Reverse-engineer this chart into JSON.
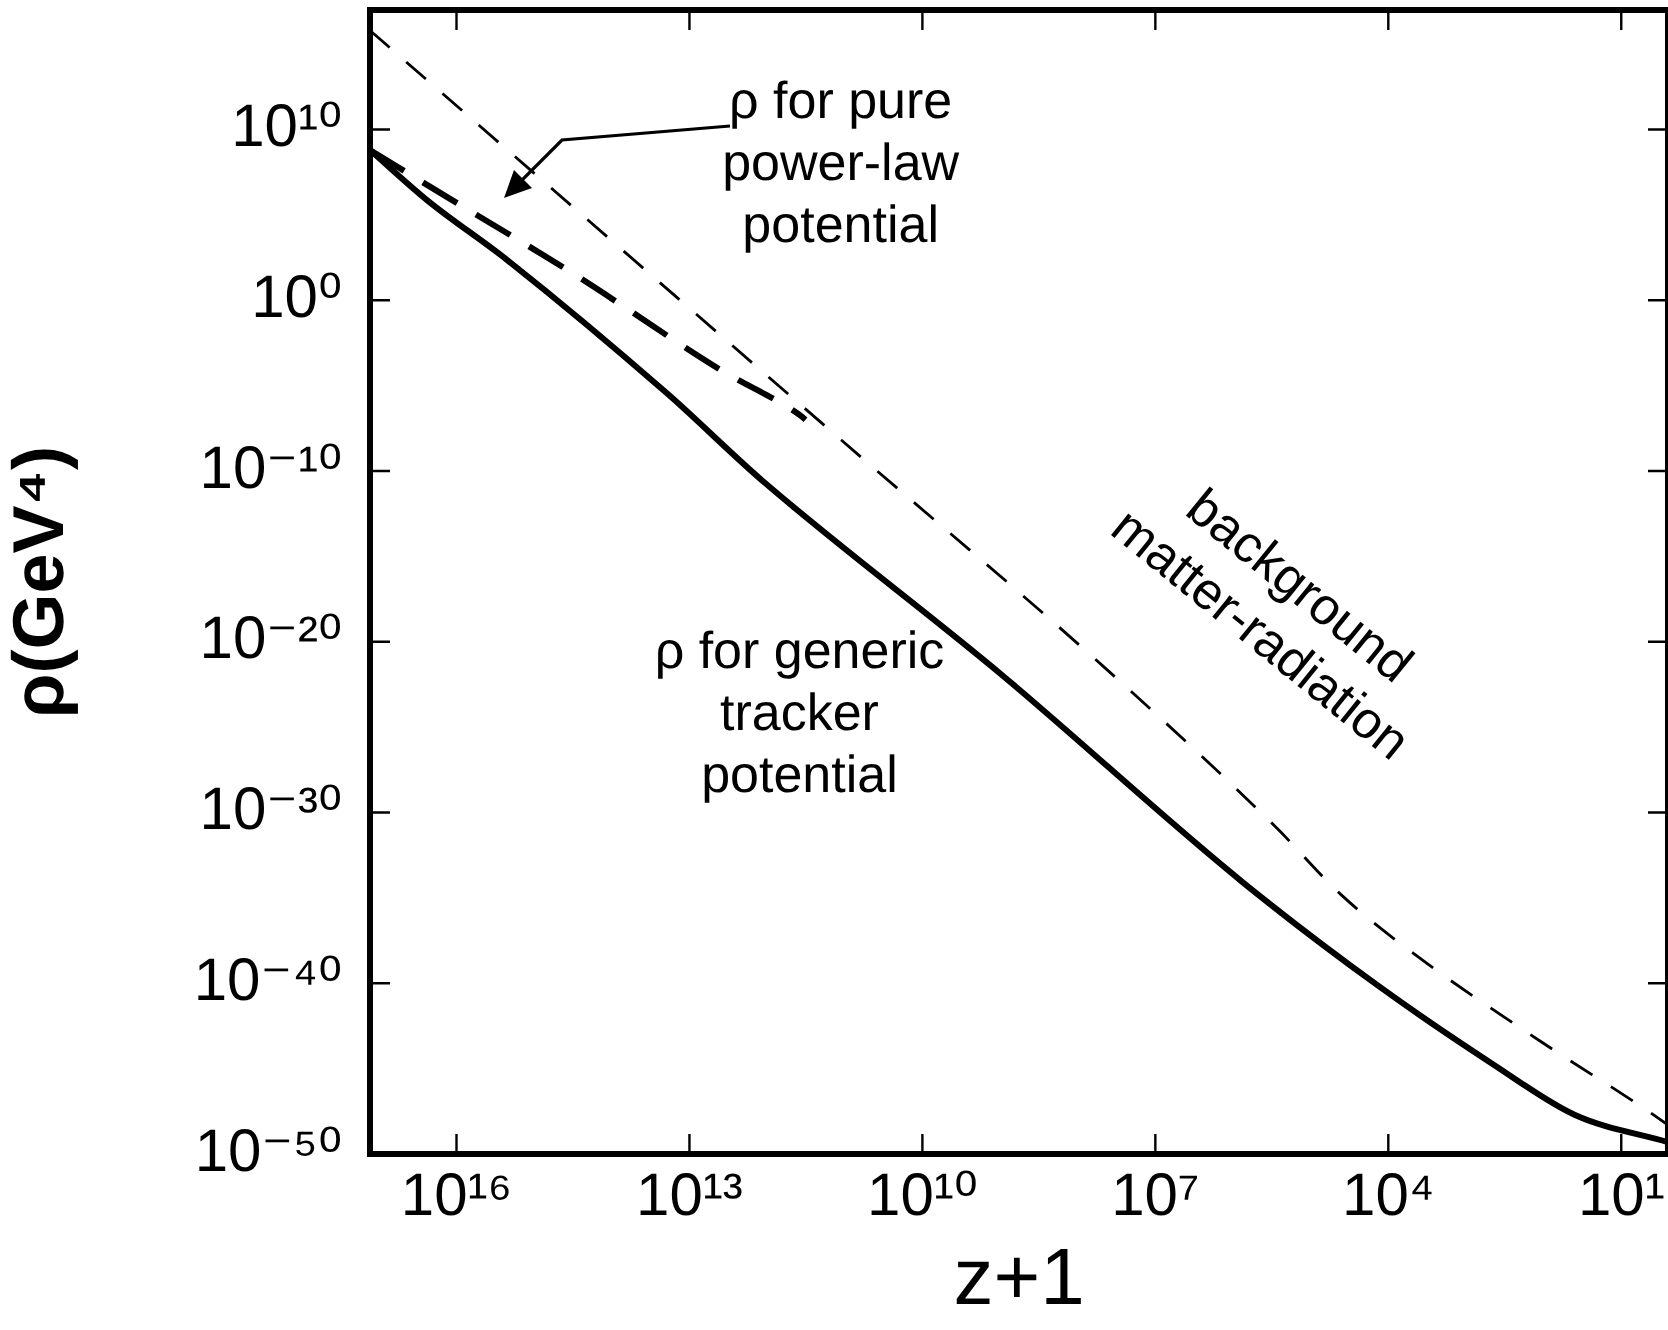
{
  "chart_data": {
    "type": "line",
    "xlabel": "z+1",
    "ylabel": "ρ(GeV⁴)",
    "log": "xy",
    "xlim": [
      1.3e+17,
      2.5
    ],
    "ylim": [
      1e-50,
      1e+17
    ],
    "xticks": [
      {
        "value": 1e+16,
        "label": "10¹⁶"
      },
      {
        "value": 10000000000000.0,
        "label": "10¹³"
      },
      {
        "value": 10000000000.0,
        "label": "10¹⁰"
      },
      {
        "value": 10000000.0,
        "label": "10⁷"
      },
      {
        "value": 10000.0,
        "label": "10⁴"
      },
      {
        "value": 10,
        "label": "10¹"
      }
    ],
    "yticks": [
      {
        "value": 10000000000.0,
        "label": "10¹⁰"
      },
      {
        "value": 1,
        "label": "10⁰"
      },
      {
        "value": 1e-10,
        "label": "10⁻¹⁰"
      },
      {
        "value": 1e-20,
        "label": "10⁻²⁰"
      },
      {
        "value": 1e-30,
        "label": "10⁻³⁰"
      },
      {
        "value": 1e-40,
        "label": "10⁻⁴⁰"
      },
      {
        "value": 1e-50,
        "label": "10⁻⁵⁰"
      }
    ],
    "legend": false,
    "marker": "none",
    "series": [
      {
        "color": "#000000",
        "line_style": "solid",
        "x": [
          1.3e+17,
          2.4e+16,
          2200000000000000.0,
          19000000000000.0,
          1200000000000.0,
          980000000.0,
          790000.0,
          13000.0,
          430,
          40,
          2.5
        ],
        "values": [
          630000000.0,
          740000.0,
          220,
          3.2e-06,
          3.2e-11,
          1.3e-22,
          1e-34,
          6.3e-41,
          1.6e-45,
          2e-48,
          5e-50
        ]
      },
      {
        "color": "#000000",
        "line_style": "dashed",
        "x": [
          1.3e+17,
          1.4e+16,
          300000000000000.0,
          3900000000000.0,
          360000000000.0,
          320000000000.0
        ],
        "values": [
          630000000.0,
          1300000.0,
          32,
          7.9e-05,
          1.6e-07,
          1e-07
        ]
      },
      {
        "color": "#000000",
        "line_style": "dashed",
        "x": [
          1.3e+17,
          110000000000.0,
          48000000.0,
          290000.0,
          41000.0,
          4600,
          110,
          5.6,
          2.5
        ],
        "values": [
          6300000000000000.0,
          6.3e-09,
          4e-22,
          1.6e-31,
          1.6e-35,
          5e-39,
          4e-44,
          6.3e-48,
          5e-49
        ]
      }
    ],
    "annotations": [
      "ρ for pure\npower-law\npotential",
      "ρ for generic\ntracker\npotential",
      "background\nmatter-radiation"
    ]
  }
}
